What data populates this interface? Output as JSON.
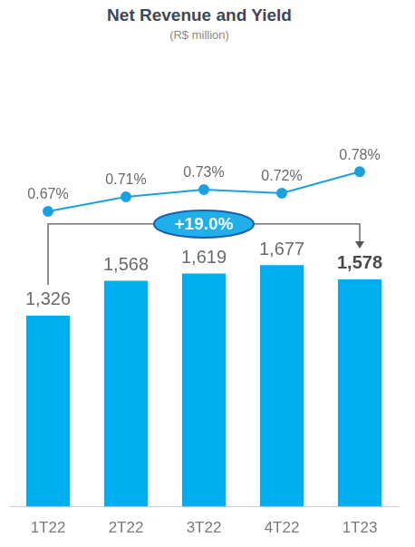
{
  "chart_data": {
    "type": "bar",
    "title": "Net Revenue and Yield",
    "subtitle": "(R$ million)",
    "categories": [
      "1T22",
      "2T22",
      "3T22",
      "4T22",
      "1T23"
    ],
    "series": [
      {
        "name": "Net Revenue",
        "type": "bar",
        "color": "#00aeef",
        "values": [
          1326,
          1568,
          1619,
          1677,
          1578
        ],
        "value_labels": [
          "1,326",
          "1,568",
          "1,619",
          "1,677",
          "1,578"
        ]
      },
      {
        "name": "Yield",
        "type": "line",
        "axis": "y2",
        "color": "#1ba1e2",
        "marker": "circle",
        "line_style": "solid",
        "values": [
          0.67,
          0.71,
          0.73,
          0.72,
          0.78
        ],
        "value_labels": [
          "0.67%",
          "0.71%",
          "0.73%",
          "0.72%",
          "0.78%"
        ]
      }
    ],
    "ylim": [
      0,
      3000
    ],
    "y2lim": [
      -0.15,
      1.05
    ],
    "grid": false,
    "data_labels": true,
    "tick_labels": "x",
    "annotations": [
      {
        "text": "+19.0%",
        "from": "1T22",
        "to": "1T23"
      }
    ]
  }
}
